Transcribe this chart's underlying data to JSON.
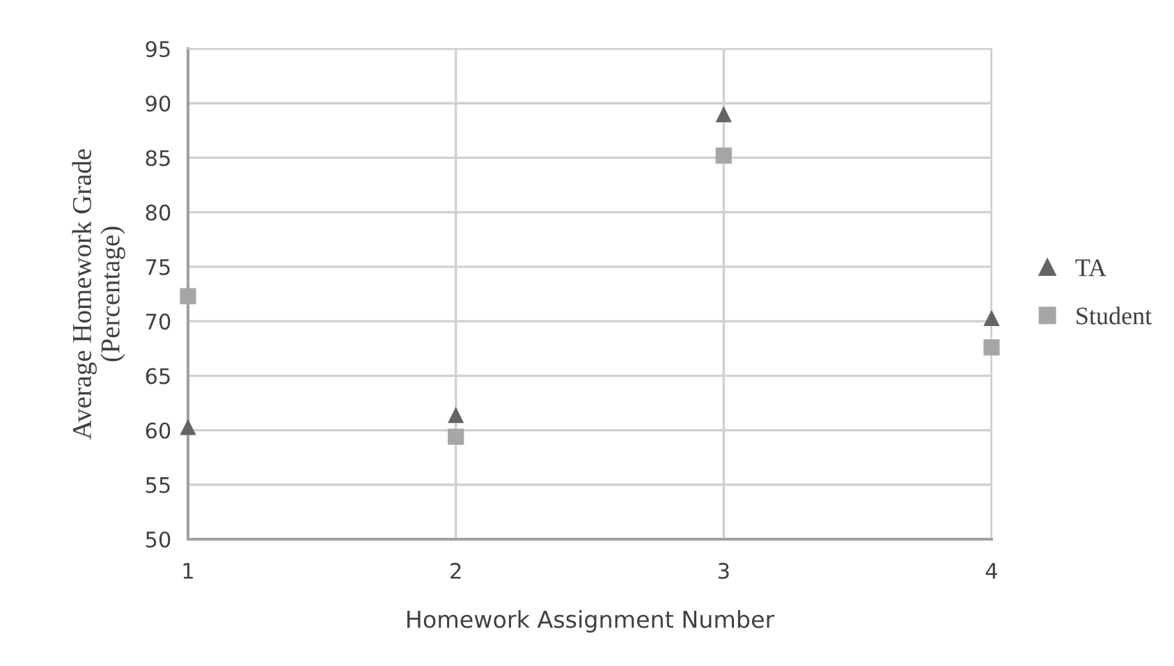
{
  "chart_data": {
    "type": "scatter",
    "xlabel": "Homework Assignment Number",
    "ylabel": "Average Homework Grade\n(Percentage)",
    "x": [
      1,
      2,
      3,
      4
    ],
    "series": [
      {
        "name": "TA",
        "color": "#646464",
        "marker": "triangle",
        "values": [
          60.3,
          61.4,
          89.0,
          70.3
        ]
      },
      {
        "name": "Student",
        "color": "#a6a6a6",
        "marker": "square",
        "values": [
          72.3,
          59.4,
          85.2,
          67.6
        ]
      }
    ],
    "xlim": [
      1,
      4
    ],
    "xticks": [
      1,
      2,
      3,
      4
    ],
    "ylim": [
      50,
      95
    ],
    "yticks": [
      50,
      55,
      60,
      65,
      70,
      75,
      80,
      85,
      90,
      95
    ],
    "grid": true,
    "legend": "right"
  }
}
